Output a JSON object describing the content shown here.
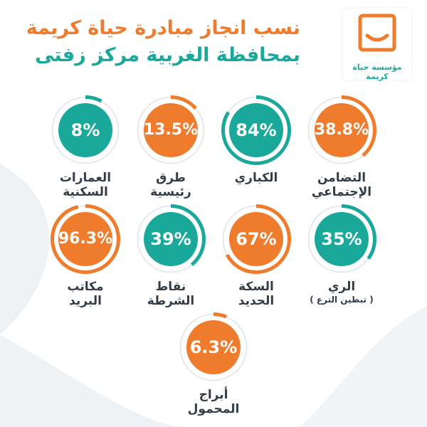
{
  "title_line1": "نسب انجاز مبادرة حياة كريمة",
  "title_line2": "بمحافظة الغربية مركز زفتى",
  "logo": {
    "caption": "مؤسسة حياة كريمة",
    "color": "#ef7b2c"
  },
  "colors": {
    "orange": "#ef7b2c",
    "teal": "#1aa89a",
    "track": "#dfe3e8",
    "label": "#333d47"
  },
  "items": [
    {
      "label": "التضامن\nالإجتماعي",
      "value_text": "38.8%",
      "percent": 38.8,
      "color": "orange"
    },
    {
      "label": "الكباري",
      "value_text": "84%",
      "percent": 84,
      "color": "teal"
    },
    {
      "label": "طرق\nرئيسية",
      "value_text": "13.5%",
      "percent": 13.5,
      "color": "orange"
    },
    {
      "label": "العمارات\nالسكنية",
      "value_text": "8%",
      "percent": 8,
      "color": "teal"
    },
    {
      "label": "الري",
      "sub": "( تبطين الترع )",
      "value_text": "35%",
      "percent": 35,
      "color": "teal"
    },
    {
      "label": "السكة\nالحديد",
      "value_text": "67%",
      "percent": 67,
      "color": "orange"
    },
    {
      "label": "نقاط\nالشرطة",
      "value_text": "39%",
      "percent": 39,
      "color": "teal"
    },
    {
      "label": "مكاتب\nالبريد",
      "value_text": "96.3%",
      "percent": 96.3,
      "color": "orange"
    },
    {
      "label": "أبراج\nالمحمول",
      "value_text": "6.3%",
      "percent": 6.3,
      "color": "orange"
    }
  ]
}
